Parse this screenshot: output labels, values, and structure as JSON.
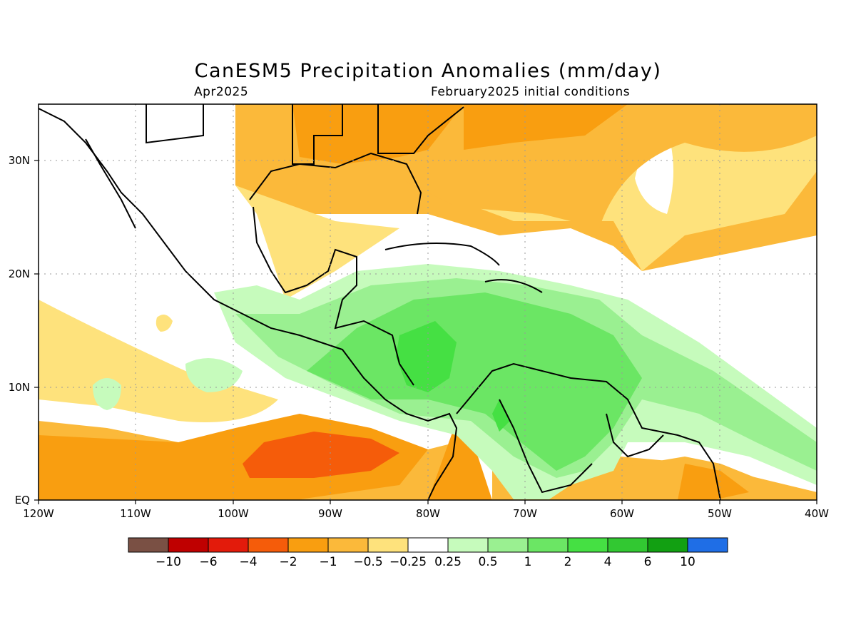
{
  "title": "CanESM5 Precipitation Anomalies (mm/day)",
  "valid_month": "Apr2025",
  "initial_conditions": "February2025 initial conditions",
  "map": {
    "x_ticks": [
      "120W",
      "110W",
      "100W",
      "90W",
      "80W",
      "70W",
      "60W",
      "50W",
      "40W"
    ],
    "y_ticks": [
      "30N",
      "20N",
      "10N",
      "EQ"
    ]
  },
  "colorbar": {
    "colors": [
      "#7a5044",
      "#bf0000",
      "#e31b0b",
      "#f55c0a",
      "#f99e10",
      "#fbb93a",
      "#fee27c",
      "#ffffff",
      "#c6fbbc",
      "#9af091",
      "#6be664",
      "#45e043",
      "#32c832",
      "#12a012",
      "#1f6ee6"
    ],
    "labels": [
      "−10",
      "−6",
      "−4",
      "−2",
      "−1",
      "−0.5",
      "−0.25",
      "0.25",
      "0.5",
      "1",
      "2",
      "4",
      "6",
      "10"
    ]
  }
}
